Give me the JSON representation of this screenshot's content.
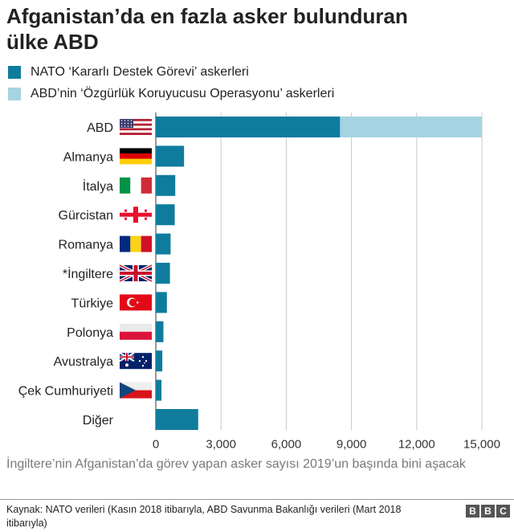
{
  "header": {
    "title_line1": "Afganistan’da en fazla asker bulunduran",
    "title_line2": "ülke ABD"
  },
  "legend": [
    {
      "label": "NATO ‘Kararlı Destek Görevi’ askerleri",
      "color": "#0f7c9e"
    },
    {
      "label": "ABD’nin ‘Özgürlük Koruyucusu Operasyonu’ askerleri",
      "color": "#a6d3e1"
    }
  ],
  "chart_data": {
    "type": "bar",
    "orientation": "horizontal",
    "stacked": true,
    "categories": [
      "ABD",
      "Almanya",
      "İtalya",
      "Gürcistan",
      "Romanya",
      "*İngiltere",
      "Türkiye",
      "Polonya",
      "Avustralya",
      "Çek Cumhuriyeti",
      "Diğer"
    ],
    "flags": [
      "us-flag",
      "germany-flag",
      "italy-flag",
      "georgia-flag",
      "romania-flag",
      "uk-flag",
      "turkey-flag",
      "poland-flag",
      "australia-flag",
      "czech-flag",
      ""
    ],
    "series": [
      {
        "name": "NATO ‘Kararlı Destek Görevi’ askerleri",
        "values": [
          8475,
          1300,
          895,
          870,
          680,
          650,
          510,
          350,
          300,
          260,
          1950
        ]
      },
      {
        "name": "ABD’nin ‘Özgürlük Koruyucusu Operasyonu’ askerleri",
        "values": [
          6525,
          0,
          0,
          0,
          0,
          0,
          0,
          0,
          0,
          0,
          0
        ]
      }
    ],
    "xlim": [
      0,
      15000
    ],
    "xticks": [
      0,
      3000,
      6000,
      9000,
      12000,
      15000
    ],
    "xtick_labels": [
      "0",
      "3,000",
      "6,000",
      "9,000",
      "12,000",
      "15,000"
    ],
    "grid": true,
    "colors": {
      "nato": "#0f7c9e",
      "abd": "#a6d3e1",
      "grid": "#c8c8c8"
    }
  },
  "note": "İngiltere’nin Afganistan’da görev yapan asker sayısı 2019’un başında bini aşacak",
  "source": "Kaynak: NATO verileri (Kasın 2018 itibarıyla, ABD Savunma Bakanlığı verileri (Mart 2018 itibarıyla)",
  "logo": [
    "B",
    "B",
    "C"
  ]
}
